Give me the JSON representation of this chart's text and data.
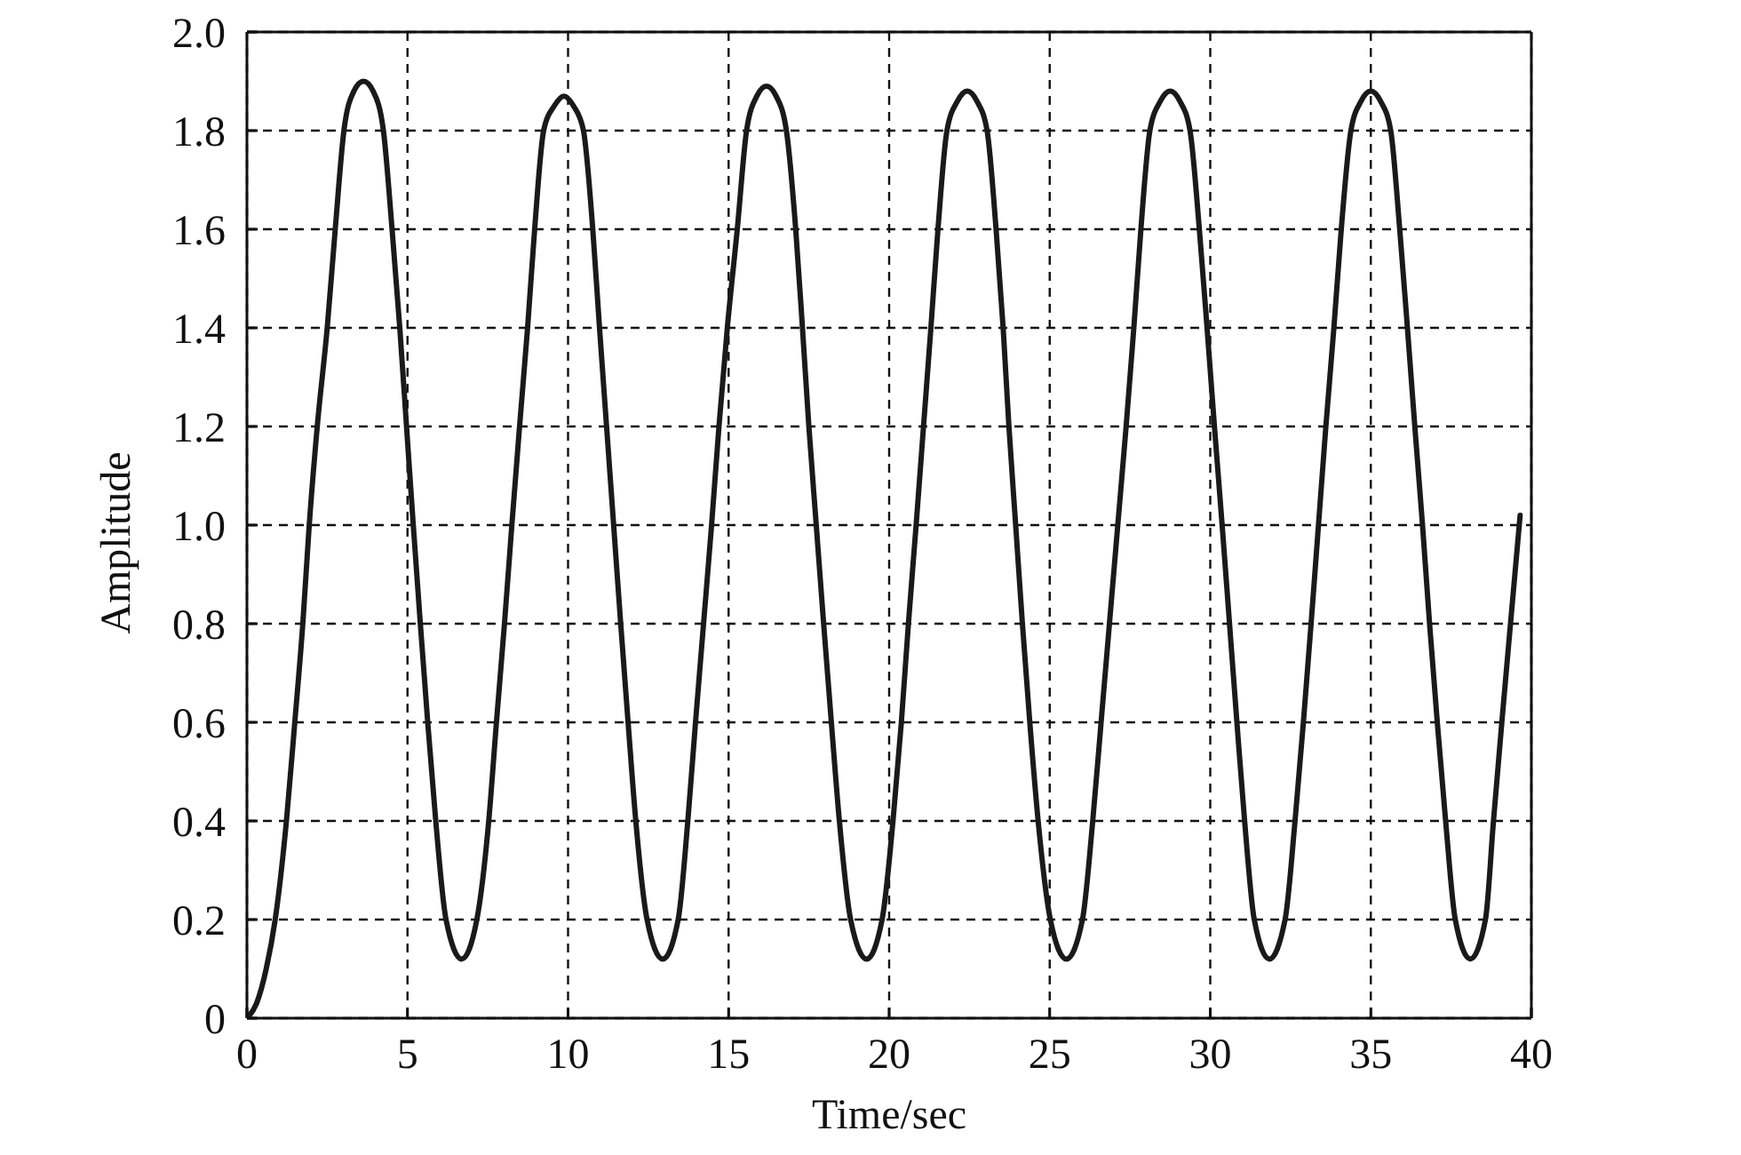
{
  "chart_data": {
    "type": "line",
    "xlabel": "Time/sec",
    "ylabel": "Amplitude",
    "color": "#1a1a1a",
    "line_style": "solid",
    "grid": true,
    "xlim": [
      0,
      40
    ],
    "xticks": [
      0,
      5,
      10,
      15,
      20,
      25,
      30,
      35,
      40
    ],
    "ylim": [
      0,
      2
    ],
    "yticks": [
      0,
      0.2,
      0.4,
      0.6,
      0.8,
      {
        "value": 1,
        "label": "1.0"
      },
      1.2,
      1.4,
      1.6,
      1.8,
      {
        "value": 2,
        "label": "2.0"
      }
    ],
    "x": [
      0,
      0.3,
      0.6,
      0.88,
      1.23,
      1.49,
      1.74,
      1.94,
      2.19,
      2.5,
      2.75,
      3.02,
      3.33,
      3.63,
      3.93,
      4.25,
      4.52,
      4.76,
      4.97,
      5.18,
      5.4,
      5.63,
      5.88,
      6.2,
      6.69,
      7.16,
      7.53,
      7.77,
      8.02,
      8.25,
      8.49,
      8.74,
      8.96,
      9.24,
      9.57,
      9.87,
      10.17,
      10.48,
      10.77,
      10.98,
      11.2,
      11.42,
      11.64,
      11.87,
      12.11,
      12.46,
      12.95,
      13.43,
      13.73,
      13.97,
      14.22,
      14.47,
      14.7,
      14.96,
      15.27,
      15.56,
      15.88,
      16.18,
      16.48,
      16.8,
      17.09,
      17.3,
      17.5,
      17.73,
      17.96,
      18.2,
      18.45,
      18.8,
      19.3,
      19.78,
      20.12,
      20.38,
      20.6,
      20.84,
      21.07,
      21.3,
      21.52,
      21.8,
      22.13,
      22.43,
      22.73,
      23.05,
      23.33,
      23.55,
      23.73,
      23.94,
      24.15,
      24.38,
      24.64,
      25.02,
      25.52,
      26.02,
      26.34,
      26.6,
      26.86,
      27.12,
      27.38,
      27.62,
      27.84,
      28.12,
      28.45,
      28.75,
      29.05,
      29.37,
      29.66,
      29.9,
      30.13,
      30.37,
      30.6,
      30.83,
      31.07,
      31.37,
      31.84,
      32.33,
      32.64,
      32.9,
      33.14,
      33.37,
      33.6,
      33.85,
      34.08,
      34.38,
      34.7,
      35.0,
      35.3,
      35.62,
      35.9,
      36.14,
      36.37,
      36.61,
      36.83,
      37.07,
      37.33,
      37.63,
      38.1,
      38.57,
      38.82,
      39.08,
      39.35,
      39.65
    ],
    "values": [
      0,
      0.03,
      0.1,
      0.2,
      0.4,
      0.6,
      0.8,
      1.0,
      1.2,
      1.4,
      1.6,
      1.8,
      1.88,
      1.9,
      1.88,
      1.8,
      1.6,
      1.4,
      1.2,
      1.0,
      0.8,
      0.6,
      0.4,
      0.2,
      0.12,
      0.2,
      0.4,
      0.6,
      0.8,
      1.0,
      1.2,
      1.4,
      1.6,
      1.8,
      1.85,
      1.87,
      1.85,
      1.8,
      1.6,
      1.4,
      1.2,
      1.0,
      0.8,
      0.6,
      0.4,
      0.2,
      0.12,
      0.2,
      0.4,
      0.6,
      0.8,
      1.0,
      1.2,
      1.4,
      1.6,
      1.8,
      1.87,
      1.89,
      1.87,
      1.8,
      1.6,
      1.4,
      1.2,
      1.0,
      0.8,
      0.6,
      0.4,
      0.2,
      0.12,
      0.2,
      0.4,
      0.6,
      0.8,
      1.0,
      1.2,
      1.4,
      1.6,
      1.8,
      1.86,
      1.88,
      1.86,
      1.8,
      1.6,
      1.4,
      1.2,
      1.0,
      0.8,
      0.6,
      0.4,
      0.2,
      0.12,
      0.2,
      0.4,
      0.6,
      0.8,
      1.0,
      1.2,
      1.4,
      1.6,
      1.8,
      1.86,
      1.88,
      1.86,
      1.8,
      1.6,
      1.4,
      1.2,
      1.0,
      0.8,
      0.6,
      0.4,
      0.2,
      0.12,
      0.2,
      0.4,
      0.6,
      0.8,
      1.0,
      1.2,
      1.4,
      1.6,
      1.8,
      1.86,
      1.88,
      1.86,
      1.8,
      1.6,
      1.4,
      1.2,
      1.0,
      0.8,
      0.6,
      0.4,
      0.2,
      0.12,
      0.2,
      0.4,
      0.6,
      0.8,
      1.02
    ]
  }
}
